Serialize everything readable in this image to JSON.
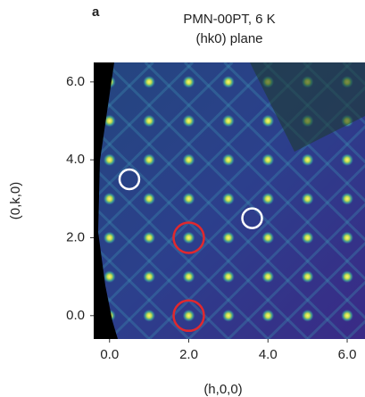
{
  "chart_data": {
    "type": "heatmap",
    "panel_label": "a",
    "title": "PMN-00PT, 6 K",
    "subtitle": "(hk0) plane",
    "xlabel": "(h,0,0)",
    "ylabel": "(0,k,0)",
    "xlim": [
      -0.4,
      6.45
    ],
    "ylim": [
      -0.6,
      6.5
    ],
    "xticks": [
      {
        "value": 0,
        "label": "0.0"
      },
      {
        "value": 2,
        "label": "2.0"
      },
      {
        "value": 4,
        "label": "4.0"
      },
      {
        "value": 6,
        "label": "6.0"
      }
    ],
    "yticks": [
      {
        "value": 0,
        "label": "0.0"
      },
      {
        "value": 2,
        "label": "2.0"
      },
      {
        "value": 4,
        "label": "4.0"
      },
      {
        "value": 6,
        "label": "6.0"
      }
    ],
    "annotations": [
      {
        "x": 0.5,
        "y": 3.5,
        "color": "#ffffff"
      },
      {
        "x": 3.6,
        "y": 2.5,
        "color": "#ffffff"
      },
      {
        "x": 2.0,
        "y": 2.0,
        "color": "#e0282e"
      },
      {
        "x": 2.0,
        "y": 0.0,
        "color": "#e0282e"
      }
    ]
  }
}
